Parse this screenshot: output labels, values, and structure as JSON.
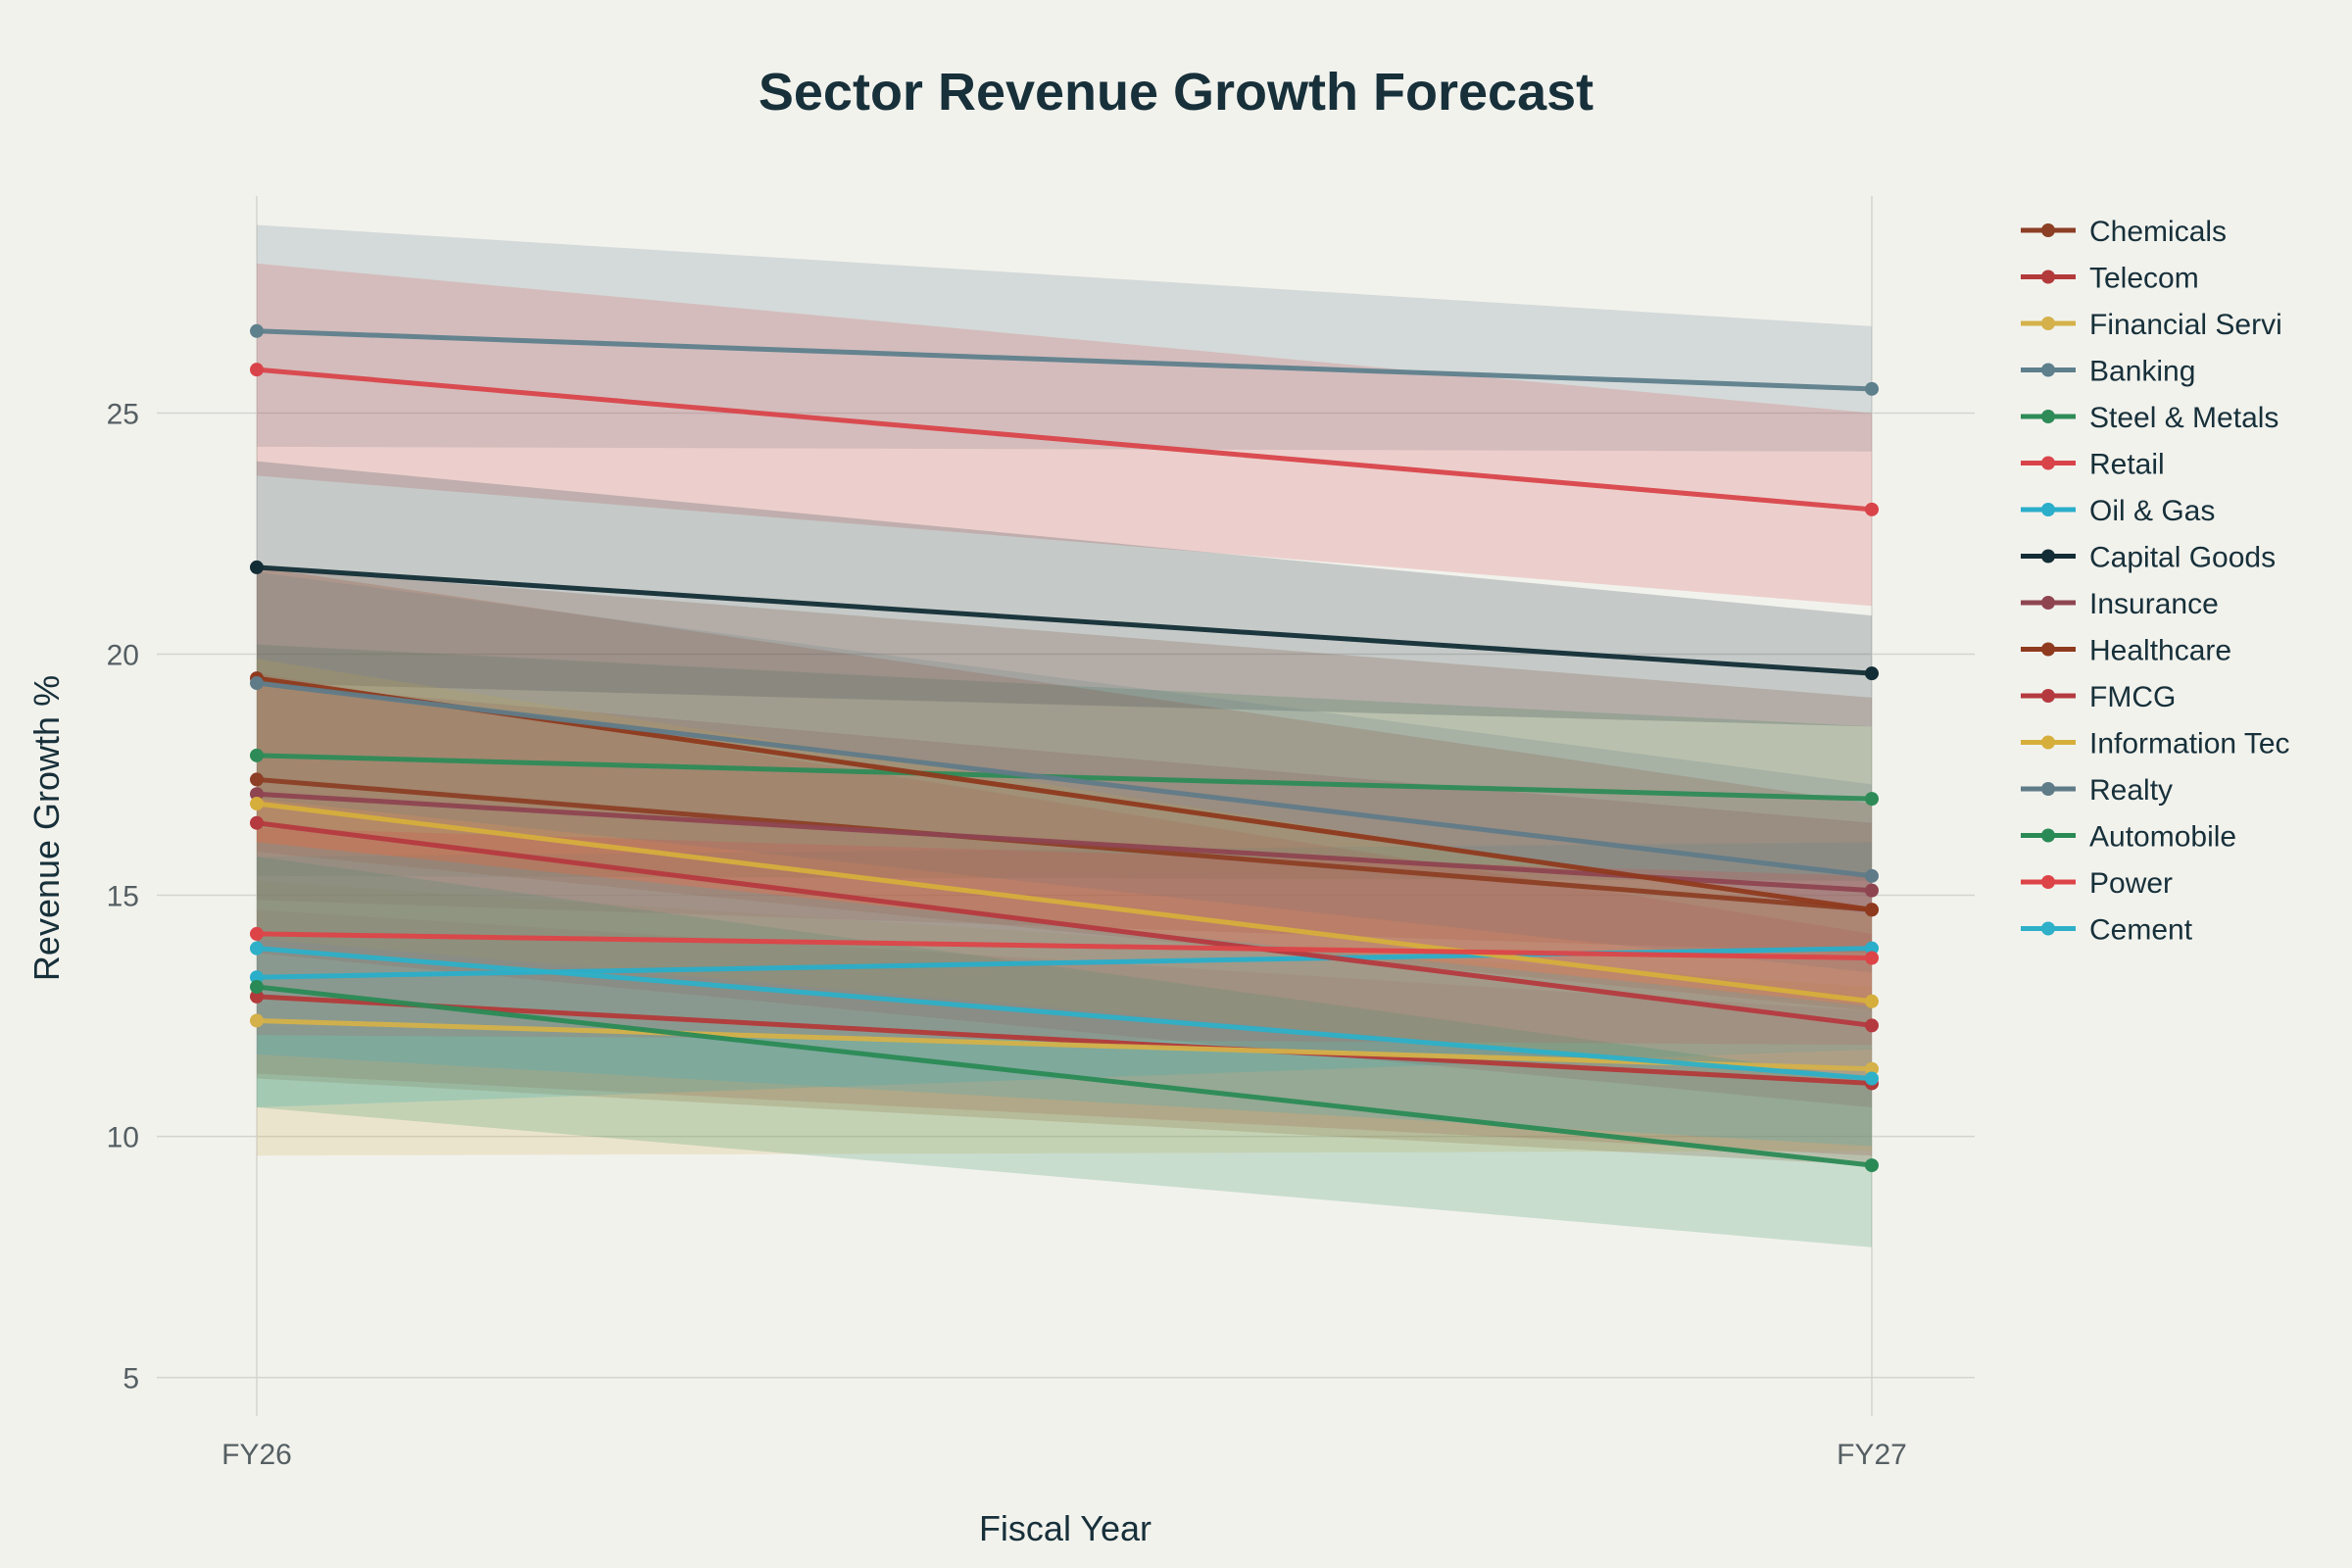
{
  "chart_data": {
    "type": "line",
    "title": "Sector Revenue Growth Forecast",
    "xlabel": "Fiscal Year",
    "ylabel": "Revenue Growth %",
    "categories": [
      "FY26",
      "FY27"
    ],
    "ylim": [
      4.2,
      29.5
    ],
    "yticks": [
      5,
      10,
      15,
      20,
      25
    ],
    "grid": true,
    "legend_position": "right",
    "background": "#f2f2ed",
    "text_color": "#17303a",
    "series": [
      {
        "name": "Chemicals",
        "values": [
          17.4,
          14.7
        ],
        "lower": [
          11.2,
          9.4
        ],
        "upper": [
          21.8,
          19.1
        ],
        "color": "#8c3f25"
      },
      {
        "name": "Telecom",
        "values": [
          12.9,
          11.1
        ],
        "lower": [
          11.3,
          9.6
        ],
        "upper": [
          14.7,
          12.6
        ],
        "color": "#b23a3a"
      },
      {
        "name": "Financial Servi",
        "values": [
          12.4,
          11.4
        ],
        "lower": [
          9.6,
          9.7
        ],
        "upper": [
          15.3,
          13.1
        ],
        "color": "#d4b14a"
      },
      {
        "name": "Banking",
        "values": [
          26.7,
          25.5
        ],
        "lower": [
          24.3,
          24.2
        ],
        "upper": [
          28.9,
          26.8
        ],
        "color": "#5e7f8c"
      },
      {
        "name": "Steel & Metals",
        "values": [
          17.9,
          17.0
        ],
        "lower": [
          15.4,
          15.3
        ],
        "upper": [
          20.2,
          18.5
        ],
        "color": "#2e8b57"
      },
      {
        "name": "Retail",
        "values": [
          25.9,
          23.0
        ],
        "lower": [
          23.7,
          21.0
        ],
        "upper": [
          28.1,
          25.0
        ],
        "color": "#d9444a"
      },
      {
        "name": "Oil & Gas",
        "values": [
          13.3,
          13.9
        ],
        "lower": [
          10.6,
          11.8
        ],
        "upper": [
          15.8,
          16.1
        ],
        "color": "#2aaec9"
      },
      {
        "name": "Capital Goods",
        "values": [
          21.8,
          19.6
        ],
        "lower": [
          19.4,
          18.5
        ],
        "upper": [
          24.0,
          20.8
        ],
        "color": "#132d36"
      },
      {
        "name": "Insurance",
        "values": [
          17.1,
          15.1
        ],
        "lower": [
          14.9,
          13.8
        ],
        "upper": [
          19.4,
          16.5
        ],
        "color": "#8e4550"
      },
      {
        "name": "Healthcare",
        "values": [
          19.5,
          14.7
        ],
        "lower": [
          15.9,
          12.6
        ],
        "upper": [
          21.8,
          16.9
        ],
        "color": "#8f3a1e"
      },
      {
        "name": "FMCG",
        "values": [
          16.5,
          12.3
        ],
        "lower": [
          13.8,
          10.6
        ],
        "upper": [
          19.6,
          14.2
        ],
        "color": "#b53a3f"
      },
      {
        "name": "Information Tec",
        "values": [
          16.9,
          12.8
        ],
        "lower": [
          14.1,
          11.2
        ],
        "upper": [
          19.9,
          14.6
        ],
        "color": "#d6ae3c"
      },
      {
        "name": "Realty",
        "values": [
          19.4,
          15.4
        ],
        "lower": [
          17.0,
          13.4
        ],
        "upper": [
          21.7,
          17.3
        ],
        "color": "#607b88"
      },
      {
        "name": "Automobile",
        "values": [
          13.1,
          9.4
        ],
        "lower": [
          10.6,
          7.7
        ],
        "upper": [
          15.8,
          11.2
        ],
        "color": "#2a8a55"
      },
      {
        "name": "Power",
        "values": [
          14.2,
          13.7
        ],
        "lower": [
          12.1,
          11.9
        ],
        "upper": [
          16.4,
          15.4
        ],
        "color": "#dd4448"
      },
      {
        "name": "Cement",
        "values": [
          13.9,
          11.2
        ],
        "lower": [
          11.7,
          9.8
        ],
        "upper": [
          16.1,
          12.7
        ],
        "color": "#2db0c8"
      }
    ]
  }
}
